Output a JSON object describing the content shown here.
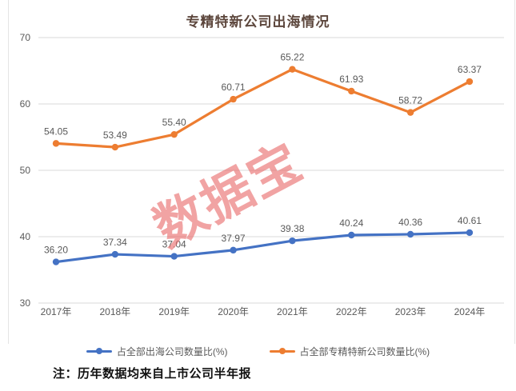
{
  "title": "专精特新公司出海情况",
  "watermark": "数据宝",
  "note": "注：历年数据均来自上市公司半年报",
  "colors": {
    "series_blue": "#4472C4",
    "series_orange": "#ED7D31",
    "gridline": "#D9D9D9",
    "axis_label": "#595959",
    "data_label": "#595959",
    "title_text": "#5D473D",
    "watermark_red": "#E86A6A",
    "note_text": "#111111",
    "frame_border": "#E4E4E4"
  },
  "chart_data": {
    "type": "line",
    "title": "专精特新公司出海情况",
    "categories": [
      "2017年",
      "2018年",
      "2019年",
      "2020年",
      "2021年",
      "2022年",
      "2023年",
      "2024年"
    ],
    "series": [
      {
        "name": "占全部出海公司数量比(%)",
        "color": "#4472C4",
        "values": [
          36.2,
          37.34,
          37.04,
          37.97,
          39.38,
          40.24,
          40.36,
          40.61
        ]
      },
      {
        "name": "占全部专精特新公司数量比(%)",
        "color": "#ED7D31",
        "values": [
          54.05,
          53.49,
          55.4,
          60.71,
          65.22,
          61.93,
          58.72,
          63.37
        ]
      }
    ],
    "xlabel": "",
    "ylabel": "",
    "ylim": [
      30,
      70
    ],
    "ytick_step": 10,
    "grid": true,
    "legend_position": "bottom",
    "data_labels": true,
    "data_label_decimals": 2
  }
}
